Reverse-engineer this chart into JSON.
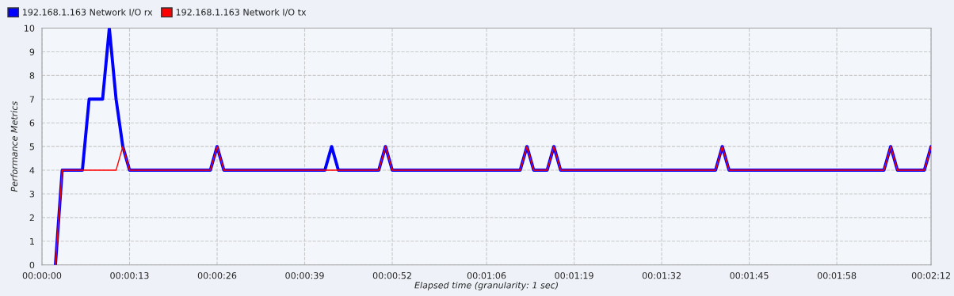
{
  "chart_data": {
    "type": "line",
    "xlabel": "Elapsed time (granularity: 1 sec)",
    "ylabel": "Performance Metrics",
    "series": [
      {
        "name": "192.168.1.163 Network I/O rx",
        "color": "#0000ff",
        "x": [
          2,
          3,
          6,
          7,
          9,
          10,
          11,
          12,
          13,
          25,
          26,
          27,
          42,
          43,
          44,
          50,
          51,
          52,
          71,
          72,
          73,
          75,
          76,
          77,
          100,
          101,
          102,
          125,
          126,
          127,
          131,
          132
        ],
        "values": [
          0,
          4,
          4,
          7,
          7,
          10,
          7,
          5,
          4,
          4,
          5,
          4,
          4,
          5,
          4,
          4,
          5,
          4,
          4,
          5,
          4,
          4,
          5,
          4,
          4,
          5,
          4,
          4,
          5,
          4,
          4,
          5
        ]
      },
      {
        "name": "192.168.1.163 Network I/O tx",
        "color": "#ff0000",
        "x": [
          2,
          3,
          11,
          12,
          13,
          25,
          26,
          27,
          50,
          51,
          52,
          71,
          72,
          73,
          75,
          76,
          77,
          100,
          101,
          102,
          125,
          126,
          127,
          131,
          132
        ],
        "values": [
          0,
          4,
          4,
          5,
          4,
          4,
          5,
          4,
          4,
          5,
          4,
          4,
          5,
          4,
          4,
          5,
          4,
          4,
          5,
          4,
          4,
          5,
          4,
          4,
          5
        ]
      }
    ],
    "xlim": [
      0,
      132
    ],
    "xticks": [
      {
        "value": 0,
        "label": "00:00:00"
      },
      {
        "value": 13,
        "label": "00:00:13"
      },
      {
        "value": 26,
        "label": "00:00:26"
      },
      {
        "value": 39,
        "label": "00:00:39"
      },
      {
        "value": 52,
        "label": "00:00:52"
      },
      {
        "value": 66,
        "label": "00:01:06"
      },
      {
        "value": 79,
        "label": "00:01:19"
      },
      {
        "value": 92,
        "label": "00:01:32"
      },
      {
        "value": 105,
        "label": "00:01:45"
      },
      {
        "value": 118,
        "label": "00:01:58"
      },
      {
        "value": 132,
        "label": "00:02:12"
      }
    ],
    "ylim": [
      0,
      10
    ],
    "yticks": [
      0,
      1,
      2,
      3,
      4,
      5,
      6,
      7,
      8,
      9,
      10
    ],
    "grid": true,
    "legend": "top left",
    "marker": "none",
    "line_style": "solid"
  }
}
